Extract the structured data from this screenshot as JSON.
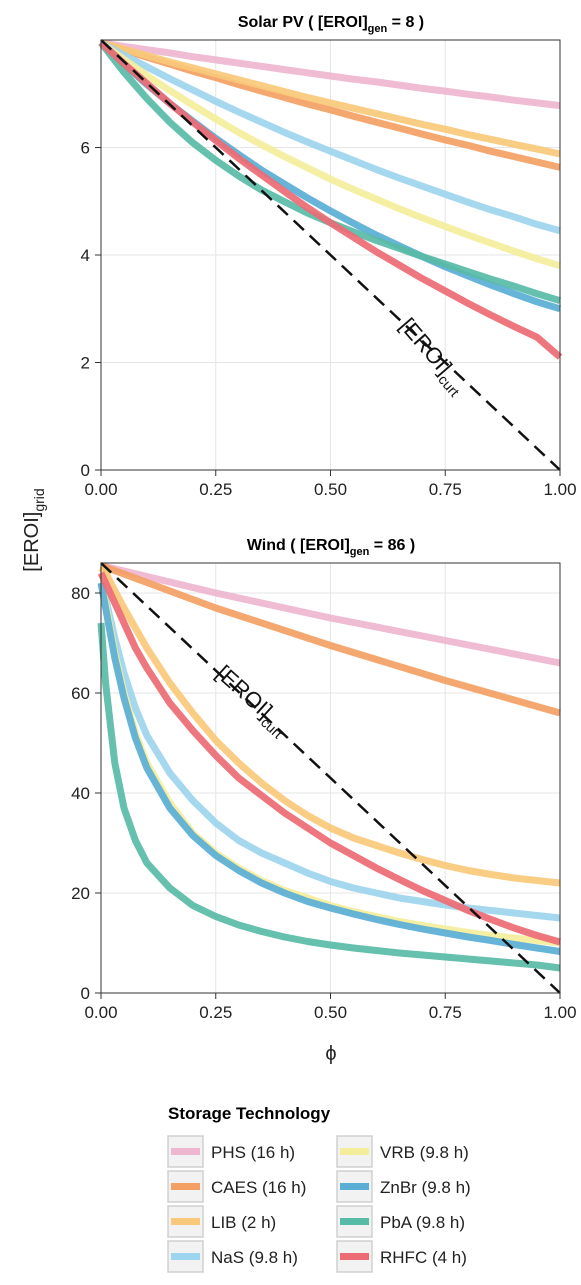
{
  "colors": {
    "PHS": "#eeb6cf",
    "CAES": "#f4a064",
    "LIB": "#f8c97a",
    "NaS": "#9dd5ee",
    "VRB": "#f4ee9c",
    "ZnBr": "#5aaed6",
    "PbA": "#58bba6",
    "RHFC": "#ed6b74"
  },
  "y_axis_title": {
    "main": "[EROI]",
    "sub": "grid"
  },
  "x_axis_title": "ϕ",
  "legend": {
    "title": "Storage Technology",
    "items": [
      {
        "key": "PHS",
        "label": "PHS (16 h)"
      },
      {
        "key": "CAES",
        "label": "CAES (16 h)"
      },
      {
        "key": "LIB",
        "label": "LIB (2 h)"
      },
      {
        "key": "NaS",
        "label": "NaS (9.8 h)"
      },
      {
        "key": "VRB",
        "label": "VRB (9.8 h)"
      },
      {
        "key": "ZnBr",
        "label": "ZnBr (9.8 h)"
      },
      {
        "key": "PbA",
        "label": "PbA (9.8 h)"
      },
      {
        "key": "RHFC",
        "label": "RHFC (4 h)"
      }
    ]
  },
  "chart_data": [
    {
      "type": "line",
      "title": {
        "prefix": "Solar PV ( [EROI]",
        "sub": "gen",
        "suffix": " = 8 )"
      },
      "xlim": [
        0,
        1
      ],
      "ylim": [
        0,
        8
      ],
      "x_ticks": [
        "0.00",
        "0.25",
        "0.50",
        "0.75",
        "1.00"
      ],
      "y_ticks": [
        "0",
        "2",
        "4",
        "6"
      ],
      "x": [
        0,
        0.05,
        0.1,
        0.15,
        0.2,
        0.25,
        0.3,
        0.35,
        0.4,
        0.45,
        0.5,
        0.55,
        0.6,
        0.65,
        0.7,
        0.75,
        0.8,
        0.85,
        0.9,
        0.95,
        1.0
      ],
      "curtailment": {
        "label_main": "[EROI]",
        "label_sub": "curt",
        "values": [
          8,
          0
        ]
      },
      "series": [
        {
          "key": "PHS",
          "values": [
            7.95,
            7.88,
            7.82,
            7.76,
            7.69,
            7.63,
            7.57,
            7.51,
            7.45,
            7.39,
            7.33,
            7.27,
            7.22,
            7.16,
            7.1,
            7.05,
            6.99,
            6.94,
            6.88,
            6.83,
            6.78
          ]
        },
        {
          "key": "CAES",
          "values": [
            7.95,
            7.81,
            7.68,
            7.55,
            7.42,
            7.3,
            7.17,
            7.05,
            6.93,
            6.81,
            6.7,
            6.58,
            6.47,
            6.36,
            6.25,
            6.14,
            6.04,
            5.93,
            5.83,
            5.73,
            5.63
          ]
        },
        {
          "key": "LIB",
          "values": [
            7.95,
            7.83,
            7.71,
            7.59,
            7.48,
            7.37,
            7.26,
            7.15,
            7.04,
            6.93,
            6.83,
            6.73,
            6.63,
            6.53,
            6.43,
            6.34,
            6.24,
            6.15,
            6.06,
            5.97,
            5.88
          ]
        },
        {
          "key": "NaS",
          "values": [
            7.95,
            7.72,
            7.5,
            7.28,
            7.07,
            6.86,
            6.66,
            6.47,
            6.28,
            6.1,
            5.93,
            5.76,
            5.59,
            5.43,
            5.28,
            5.13,
            4.98,
            4.84,
            4.71,
            4.57,
            4.45
          ]
        },
        {
          "key": "VRB",
          "values": [
            7.95,
            7.64,
            7.34,
            7.06,
            6.79,
            6.53,
            6.28,
            6.05,
            5.83,
            5.62,
            5.41,
            5.22,
            5.04,
            4.86,
            4.69,
            4.53,
            4.37,
            4.22,
            4.07,
            3.93,
            3.8
          ]
        },
        {
          "key": "ZnBr",
          "values": [
            7.95,
            7.55,
            7.17,
            6.82,
            6.49,
            6.17,
            5.87,
            5.58,
            5.32,
            5.06,
            4.82,
            4.59,
            4.37,
            4.17,
            3.97,
            3.78,
            3.61,
            3.44,
            3.28,
            3.13,
            3.0
          ]
        },
        {
          "key": "PbA",
          "values": [
            7.95,
            7.4,
            6.91,
            6.47,
            6.09,
            5.76,
            5.47,
            5.21,
            4.99,
            4.78,
            4.6,
            4.43,
            4.27,
            4.12,
            3.97,
            3.83,
            3.69,
            3.55,
            3.42,
            3.28,
            3.15
          ]
        },
        {
          "key": "RHFC",
          "values": [
            7.95,
            7.56,
            7.19,
            6.82,
            6.47,
            6.13,
            5.8,
            5.49,
            5.18,
            4.88,
            4.6,
            4.33,
            4.06,
            3.81,
            3.56,
            3.33,
            3.1,
            2.88,
            2.67,
            2.47,
            2.1
          ]
        }
      ]
    },
    {
      "type": "line",
      "title": {
        "prefix": "Wind ( [EROI]",
        "sub": "gen",
        "suffix": " = 86 )"
      },
      "xlim": [
        0,
        1
      ],
      "ylim": [
        0,
        86
      ],
      "x_ticks": [
        "0.00",
        "0.25",
        "0.50",
        "0.75",
        "1.00"
      ],
      "y_ticks": [
        "0",
        "20",
        "40",
        "60",
        "80"
      ],
      "x": [
        0,
        0.01,
        0.03,
        0.05,
        0.075,
        0.1,
        0.15,
        0.2,
        0.25,
        0.3,
        0.35,
        0.4,
        0.45,
        0.5,
        0.55,
        0.6,
        0.65,
        0.7,
        0.75,
        0.8,
        0.85,
        0.9,
        0.95,
        1.0
      ],
      "curtailment": {
        "label_main": "[EROI]",
        "label_sub": "curt",
        "values": [
          86,
          0
        ]
      },
      "series": [
        {
          "key": "PHS",
          "x": [
            0,
            0.25,
            0.5,
            0.75,
            1.0
          ],
          "values": [
            85.5,
            80,
            75,
            70.5,
            66
          ]
        },
        {
          "key": "CAES",
          "x": [
            0,
            0.25,
            0.5,
            0.75,
            1.0
          ],
          "values": [
            85.5,
            77,
            69.5,
            62.5,
            56
          ]
        },
        {
          "key": "LIB",
          "values": [
            85,
            84,
            80.5,
            77,
            73,
            69,
            62,
            56,
            50.5,
            46,
            42,
            38.5,
            35.5,
            33,
            31,
            29.5,
            28,
            26.7,
            25.5,
            24.5,
            23.7,
            23,
            22.5,
            22
          ]
        },
        {
          "key": "NaS",
          "values": [
            82,
            79,
            71,
            64,
            57,
            51.5,
            44,
            38.5,
            34,
            30.5,
            28,
            26,
            24,
            22.3,
            21,
            20,
            19,
            18.3,
            17.6,
            17,
            16.5,
            16,
            15.5,
            15
          ]
        },
        {
          "key": "VRB",
          "values": [
            82,
            78,
            68,
            60,
            52,
            46,
            38,
            32,
            28,
            25,
            22.5,
            20.5,
            19,
            17.5,
            16.3,
            15.3,
            14.3,
            13.5,
            12.8,
            12.1,
            11.5,
            11,
            10.5,
            10
          ]
        },
        {
          "key": "ZnBr",
          "values": [
            82,
            77,
            67,
            59,
            51,
            45,
            37,
            31.5,
            27.5,
            24.5,
            22,
            20,
            18.3,
            17,
            15.8,
            14.7,
            13.7,
            12.8,
            12,
            11.2,
            10.5,
            9.7,
            9,
            8.3
          ]
        },
        {
          "key": "PbA",
          "values": [
            74,
            62,
            46,
            37,
            30.5,
            26,
            21,
            17.5,
            15.3,
            13.6,
            12.3,
            11.2,
            10.3,
            9.6,
            9,
            8.5,
            8,
            7.6,
            7.2,
            6.8,
            6.4,
            6,
            5.6,
            5
          ]
        },
        {
          "key": "RHFC",
          "values": [
            84,
            82,
            78,
            74,
            69,
            65,
            58,
            52.5,
            47.5,
            43,
            39.5,
            36,
            33,
            30,
            27.5,
            25,
            22.7,
            20.5,
            18.5,
            16.5,
            14.7,
            13,
            11.5,
            10.2
          ]
        }
      ]
    }
  ]
}
